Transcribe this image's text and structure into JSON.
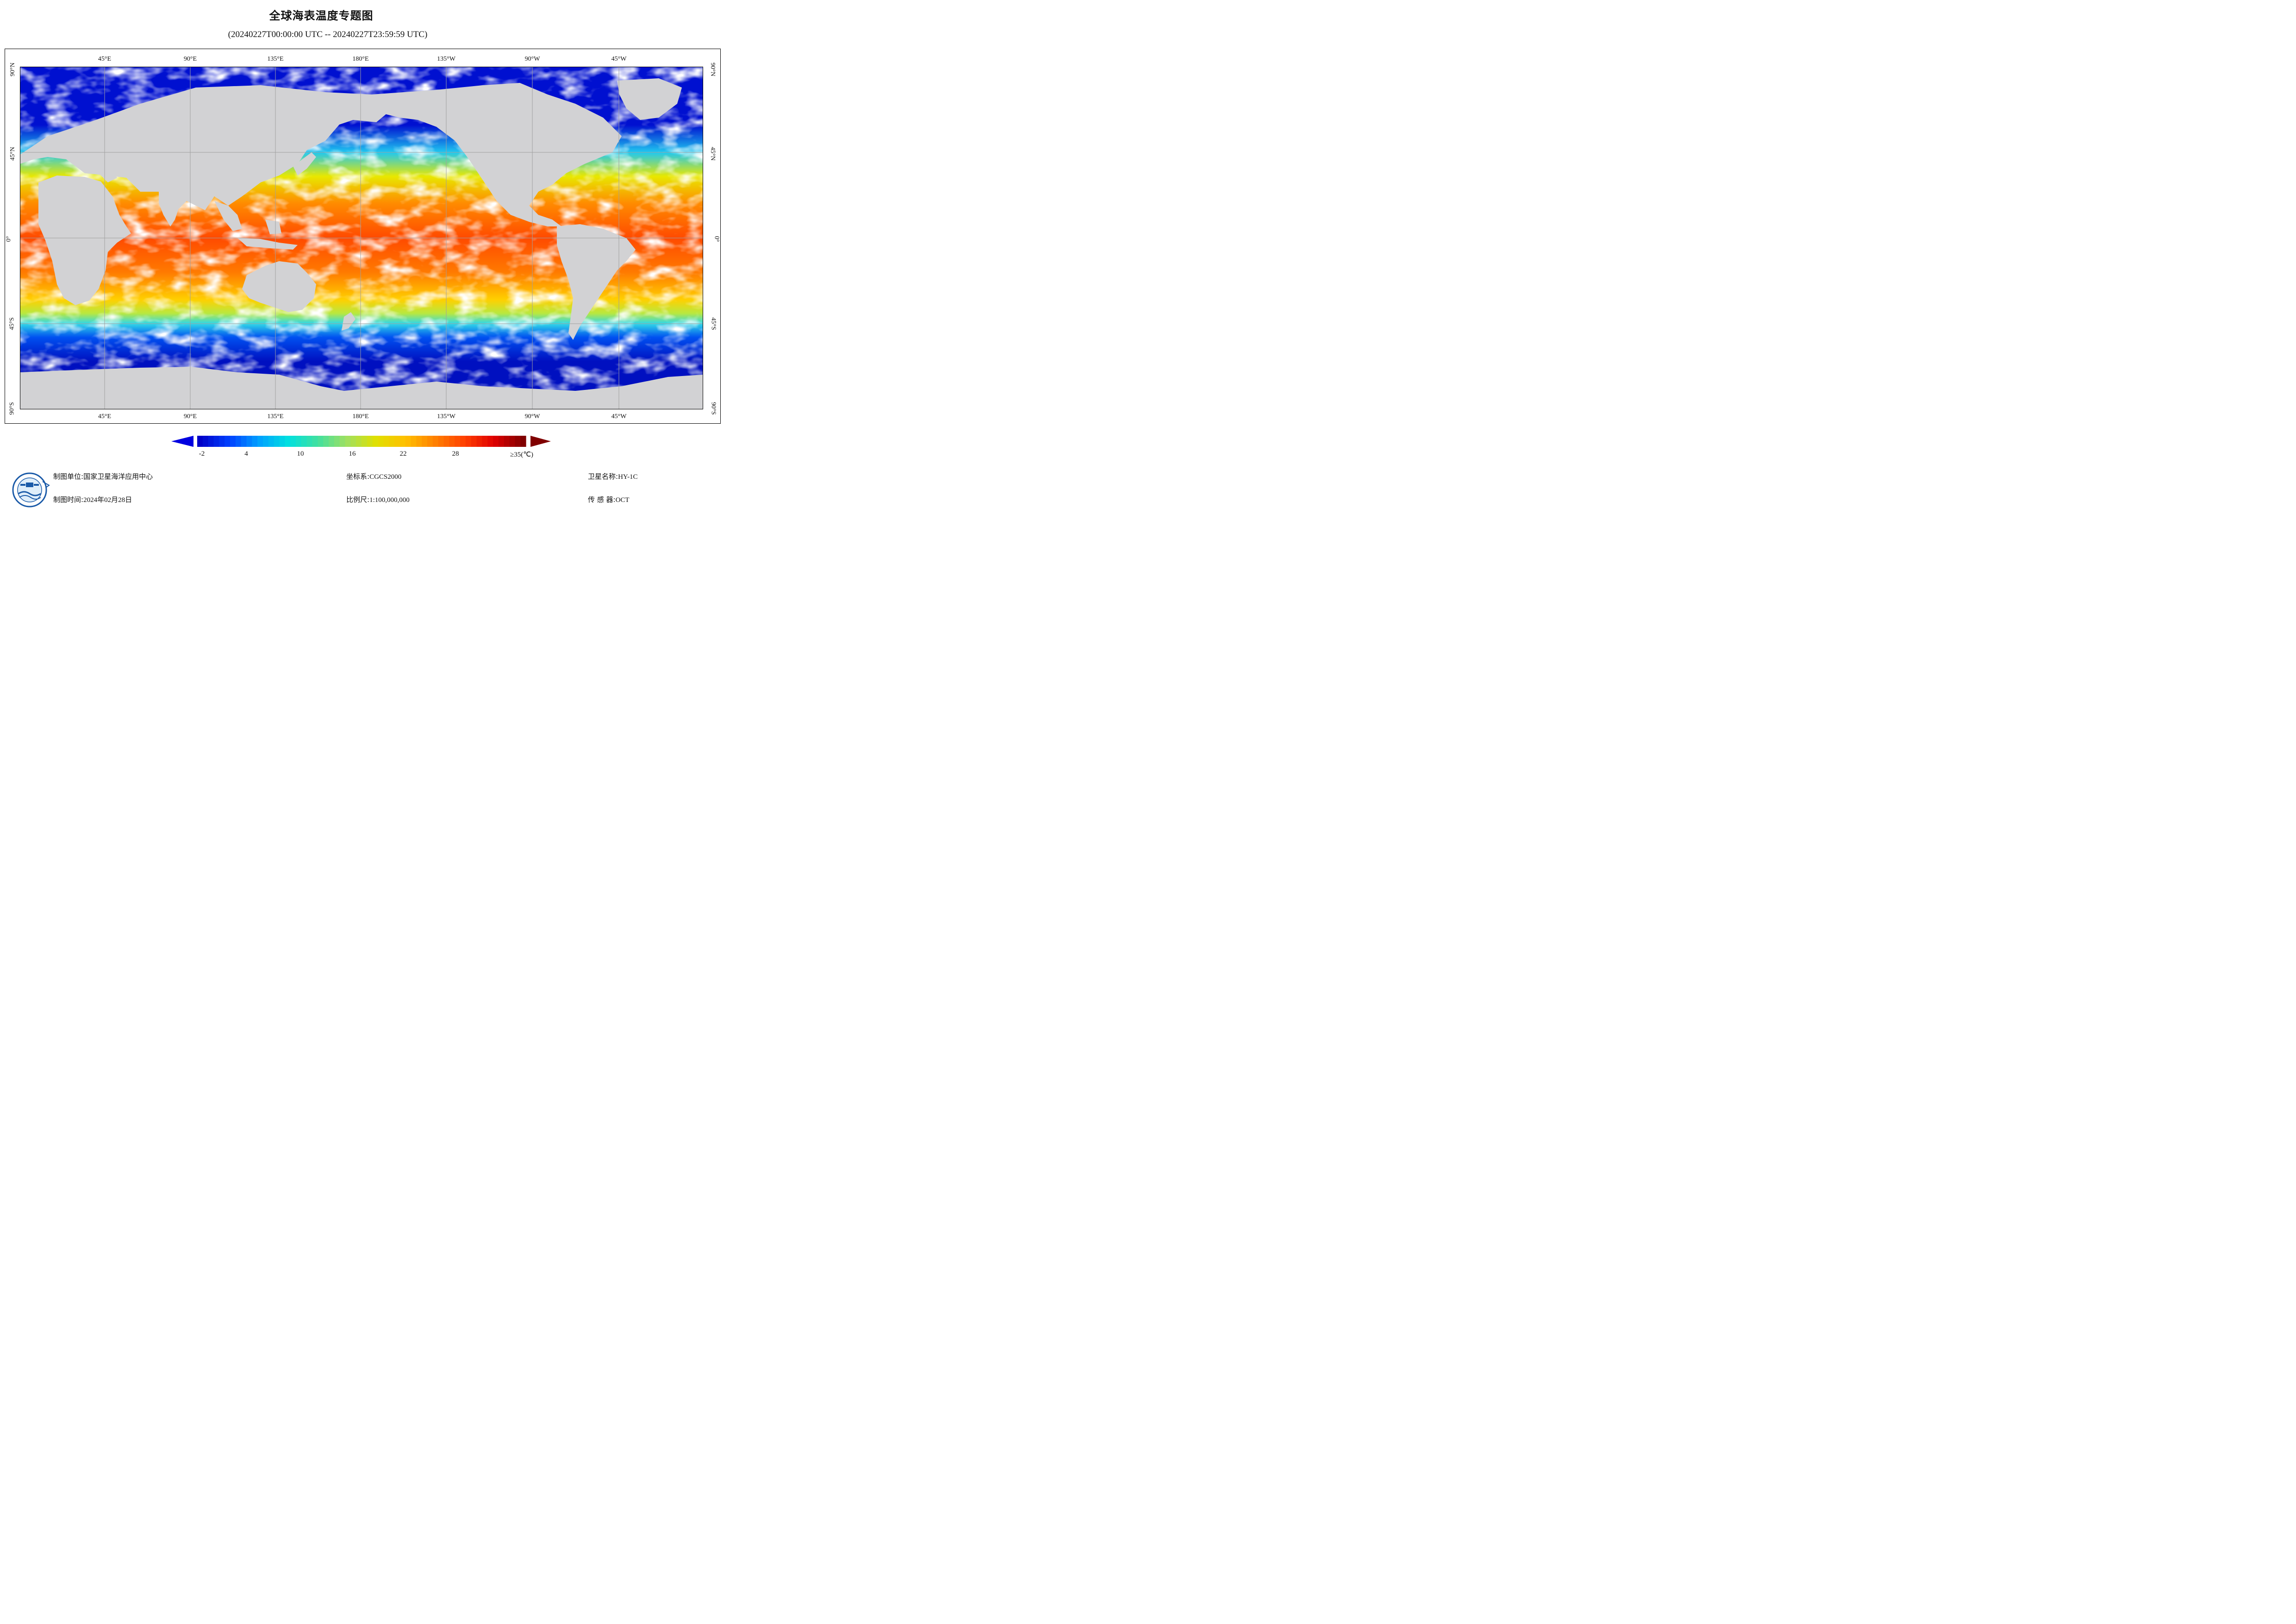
{
  "header": {
    "title": "全球海表温度专题图",
    "subtitle": "(20240227T00:00:00 UTC -- 20240227T23:59:59 UTC)"
  },
  "map": {
    "projection": "equirectangular",
    "center_longitude": "180°E",
    "graticule": {
      "lon_labels": [
        "45°E",
        "90°E",
        "135°E",
        "180°E",
        "135°W",
        "90°W",
        "45°W"
      ],
      "lat_labels": [
        "90°N",
        "45°N",
        "0°",
        "45°S",
        "90°S"
      ]
    },
    "colors": {
      "land": "#d2d2d4",
      "no_data_cloud": "#ffffff",
      "grid": "#a0a0a0"
    }
  },
  "colorbar": {
    "tick_labels": [
      "-2",
      "4",
      "10",
      "16",
      "22",
      "28",
      "≥35(℃)"
    ],
    "min": -2,
    "max": 35,
    "unit": "℃",
    "colors": [
      "#0000c8",
      "#0040ff",
      "#00a0ff",
      "#00e0e0",
      "#40e0a0",
      "#a0e060",
      "#e0e000",
      "#ffc000",
      "#ff8000",
      "#ff4000",
      "#e00000",
      "#800000"
    ]
  },
  "footer": {
    "unit_label": "制图单位:",
    "unit_value": "国家卫星海洋应用中心",
    "time_label": "制图时间:",
    "time_value": "2024年02月28日",
    "crs_label": "坐标系:",
    "crs_value": "CGCS2000",
    "scale_label": "比例尺:",
    "scale_value": "1:100,000,000",
    "satellite_label": "卫星名称:",
    "satellite_value": "HY-1C",
    "sensor_label": "传 感 器:",
    "sensor_value": "OCT"
  }
}
